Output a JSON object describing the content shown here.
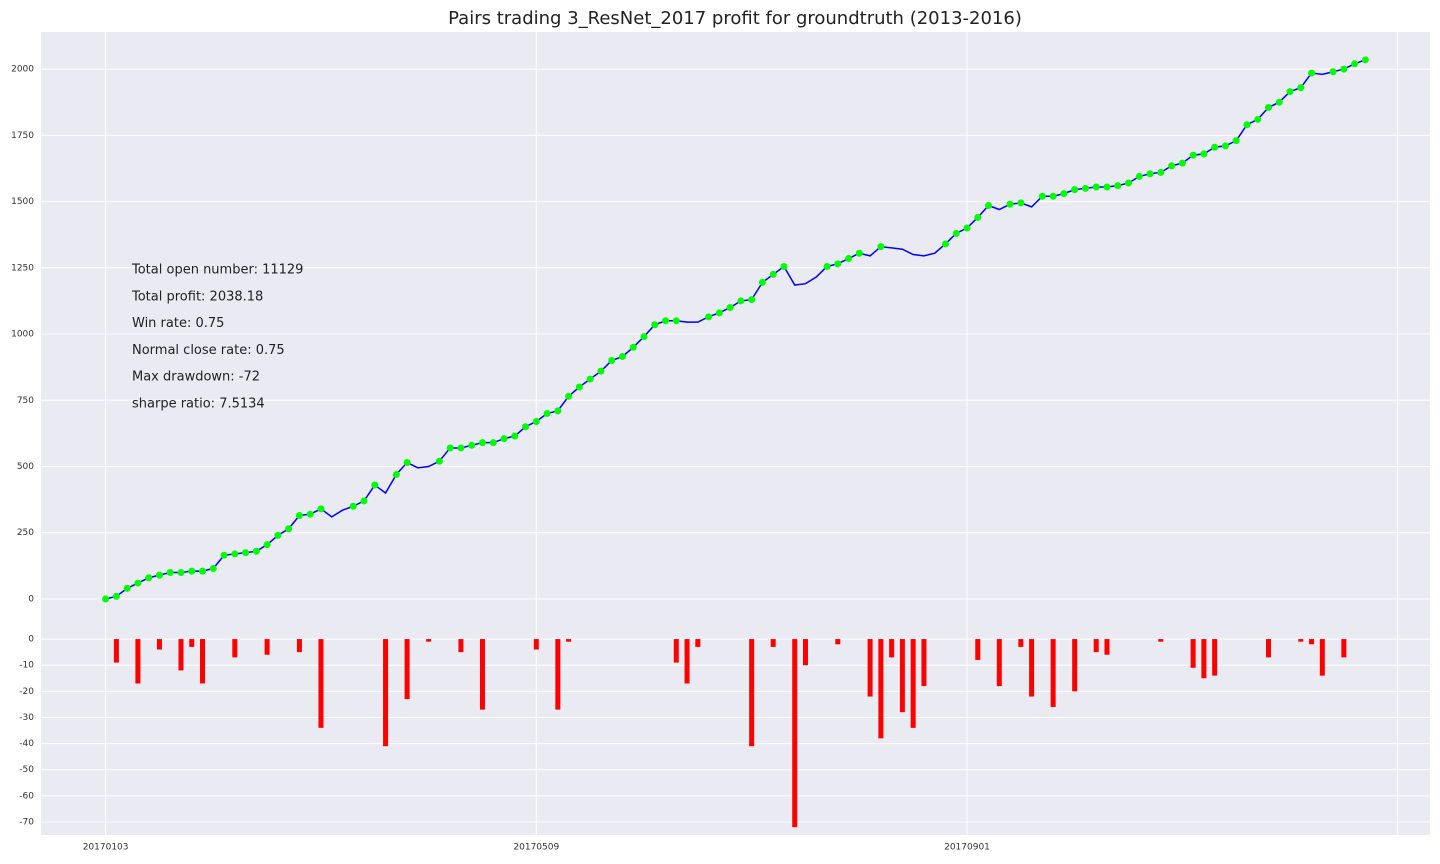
{
  "chart_data": [
    {
      "type": "line",
      "title": "Pairs trading 3_ResNet_2017 profit for groundtruth (2013-2016)",
      "annotations": [
        "Total open number: 11129",
        "Total profit: 2038.18",
        "Win rate: 0.75",
        "Normal close rate: 0.75",
        "Max drawdown: -72",
        "sharpe ratio: 7.5134"
      ],
      "values": [
        0,
        10,
        40,
        60,
        80,
        90,
        100,
        100,
        105,
        105,
        115,
        165,
        170,
        175,
        180,
        205,
        240,
        265,
        315,
        320,
        340,
        310,
        335,
        350,
        370,
        430,
        400,
        470,
        515,
        495,
        500,
        520,
        570,
        570,
        580,
        590,
        590,
        605,
        615,
        650,
        670,
        700,
        710,
        765,
        800,
        830,
        860,
        900,
        915,
        950,
        990,
        1035,
        1050,
        1050,
        1045,
        1045,
        1065,
        1080,
        1100,
        1125,
        1130,
        1195,
        1225,
        1255,
        1185,
        1190,
        1215,
        1255,
        1265,
        1285,
        1305,
        1295,
        1330,
        1325,
        1320,
        1300,
        1295,
        1305,
        1340,
        1380,
        1400,
        1440,
        1485,
        1470,
        1490,
        1495,
        1480,
        1520,
        1520,
        1530,
        1545,
        1550,
        1555,
        1555,
        1560,
        1570,
        1595,
        1605,
        1610,
        1635,
        1645,
        1675,
        1680,
        1705,
        1710,
        1730,
        1790,
        1810,
        1855,
        1875,
        1915,
        1930,
        1985,
        1980,
        1990,
        2000,
        2020,
        2035
      ],
      "color": "#0000ff",
      "marker_color": "#00ff00",
      "xlim": [
        -6,
        123
      ],
      "xticks": [
        0,
        40,
        80,
        120
      ],
      "ylim": [
        -102,
        2140
      ],
      "yticks": [
        0,
        250,
        500,
        750,
        1000,
        1250,
        1500,
        1750,
        2000
      ],
      "grid": true
    },
    {
      "type": "bar",
      "values": [
        0,
        -9,
        0,
        -17,
        0,
        -4,
        0,
        -12,
        -3,
        -17,
        0,
        0,
        -7,
        0,
        0,
        -6,
        0,
        0,
        -5,
        0,
        -34,
        0,
        0,
        0,
        0,
        0,
        -41,
        0,
        -23,
        0,
        -1,
        0,
        0,
        -5,
        0,
        -27,
        0,
        0,
        0,
        0,
        -4,
        0,
        -27,
        -1,
        0,
        0,
        0,
        0,
        0,
        0,
        0,
        0,
        0,
        -9,
        -17,
        -3,
        0,
        0,
        0,
        0,
        -41,
        0,
        -3,
        0,
        -72,
        -10,
        0,
        0,
        -2,
        0,
        0,
        -22,
        -38,
        -7,
        -28,
        -34,
        -18,
        0,
        0,
        0,
        0,
        -8,
        0,
        -18,
        0,
        -3,
        -22,
        0,
        -26,
        0,
        -20,
        0,
        -5,
        -6,
        0,
        0,
        0,
        0,
        -1,
        0,
        0,
        -11,
        -15,
        -14,
        0,
        0,
        0,
        0,
        -7,
        0,
        0,
        -1,
        -2,
        -14,
        0,
        -7,
        0,
        0
      ],
      "color": "#ff0000",
      "xlim": [
        -6,
        123
      ],
      "xticks": [
        {
          "value": 0,
          "label": "20170103"
        },
        {
          "value": 40,
          "label": "20170509"
        },
        {
          "value": 80,
          "label": "20170901"
        },
        {
          "value": 120,
          "label": null
        }
      ],
      "ylim": [
        -75,
        5
      ],
      "yticks": [
        0,
        -10,
        -20,
        -30,
        -40,
        -50,
        -60,
        -70
      ],
      "grid": true
    }
  ]
}
